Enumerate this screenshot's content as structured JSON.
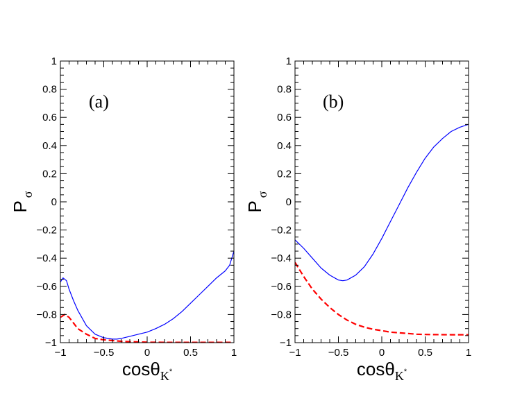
{
  "chart_data": [
    {
      "type": "line",
      "panel_label": "(a)",
      "xlabel": {
        "main": "cos",
        "theta": "θ",
        "sub": "K",
        "sup": "*"
      },
      "ylabel": {
        "main": "P",
        "sub": "σ"
      },
      "xlim": [
        -1,
        1
      ],
      "ylim": [
        -1,
        1
      ],
      "x_ticks": [
        -1,
        -0.5,
        0,
        0.5,
        1
      ],
      "x_tick_labels": [
        "−1",
        "−0.5",
        "0",
        "0.5",
        "1"
      ],
      "y_ticks": [
        -1,
        -0.8,
        -0.6,
        -0.4,
        -0.2,
        0,
        0.2,
        0.4,
        0.6,
        0.8,
        1
      ],
      "y_tick_labels": [
        "−1",
        "−0.8",
        "−0.6",
        "−0.4",
        "−0.2",
        "0",
        "0.2",
        "0.4",
        "0.6",
        "0.8",
        "1"
      ],
      "series": [
        {
          "style": "solid",
          "color": "#0000ff",
          "x": [
            -1.0,
            -0.97,
            -0.93,
            -0.9,
            -0.85,
            -0.8,
            -0.7,
            -0.6,
            -0.5,
            -0.4,
            -0.35,
            -0.3,
            -0.2,
            -0.1,
            0.0,
            0.1,
            0.2,
            0.3,
            0.4,
            0.5,
            0.6,
            0.7,
            0.8,
            0.9,
            0.95,
            1.0
          ],
          "y": [
            -0.57,
            -0.54,
            -0.56,
            -0.62,
            -0.7,
            -0.77,
            -0.88,
            -0.94,
            -0.965,
            -0.975,
            -0.975,
            -0.97,
            -0.955,
            -0.94,
            -0.925,
            -0.9,
            -0.87,
            -0.83,
            -0.78,
            -0.72,
            -0.66,
            -0.6,
            -0.54,
            -0.49,
            -0.45,
            -0.35
          ]
        },
        {
          "style": "dashed",
          "color": "#ff0000",
          "x": [
            -1.0,
            -0.95,
            -0.9,
            -0.85,
            -0.8,
            -0.7,
            -0.6,
            -0.5,
            -0.4,
            -0.3,
            -0.2,
            -0.1,
            0.0,
            0.2,
            0.4,
            0.6,
            0.8,
            1.0
          ],
          "y": [
            -0.82,
            -0.8,
            -0.82,
            -0.86,
            -0.9,
            -0.94,
            -0.97,
            -0.98,
            -0.985,
            -0.99,
            -0.993,
            -0.995,
            -0.997,
            -0.998,
            -0.998,
            -0.998,
            -0.998,
            -0.998
          ]
        }
      ]
    },
    {
      "type": "line",
      "panel_label": "(b)",
      "xlabel": {
        "main": "cos",
        "theta": "θ",
        "sub": "K",
        "sup": "*"
      },
      "ylabel": {
        "main": "P",
        "sub": "σ"
      },
      "xlim": [
        -1,
        1
      ],
      "ylim": [
        -1,
        1
      ],
      "x_ticks": [
        -1,
        -0.5,
        0,
        0.5,
        1
      ],
      "x_tick_labels": [
        "−1",
        "−0.5",
        "0",
        "0.5",
        "1"
      ],
      "y_ticks": [
        -1,
        -0.8,
        -0.6,
        -0.4,
        -0.2,
        0,
        0.2,
        0.4,
        0.6,
        0.8,
        1
      ],
      "y_tick_labels": [
        "−1",
        "−0.8",
        "−0.6",
        "−0.4",
        "−0.2",
        "0",
        "0.2",
        "0.4",
        "0.6",
        "0.8",
        "1"
      ],
      "series": [
        {
          "style": "solid",
          "color": "#0000ff",
          "x": [
            -1.0,
            -0.9,
            -0.8,
            -0.7,
            -0.6,
            -0.5,
            -0.45,
            -0.4,
            -0.3,
            -0.2,
            -0.1,
            0.0,
            0.1,
            0.2,
            0.3,
            0.4,
            0.5,
            0.6,
            0.7,
            0.8,
            0.9,
            1.0
          ],
          "y": [
            -0.27,
            -0.33,
            -0.4,
            -0.47,
            -0.52,
            -0.555,
            -0.56,
            -0.555,
            -0.52,
            -0.46,
            -0.37,
            -0.26,
            -0.14,
            -0.02,
            0.1,
            0.21,
            0.31,
            0.39,
            0.45,
            0.5,
            0.53,
            0.55
          ]
        },
        {
          "style": "dashed",
          "color": "#ff0000",
          "x": [
            -1.0,
            -0.9,
            -0.8,
            -0.7,
            -0.6,
            -0.5,
            -0.4,
            -0.3,
            -0.2,
            -0.1,
            0.0,
            0.1,
            0.2,
            0.3,
            0.4,
            0.5,
            0.6,
            0.8,
            1.0
          ],
          "y": [
            -0.43,
            -0.53,
            -0.62,
            -0.69,
            -0.75,
            -0.8,
            -0.84,
            -0.87,
            -0.89,
            -0.905,
            -0.915,
            -0.925,
            -0.93,
            -0.935,
            -0.94,
            -0.942,
            -0.943,
            -0.944,
            -0.944
          ]
        }
      ]
    }
  ]
}
